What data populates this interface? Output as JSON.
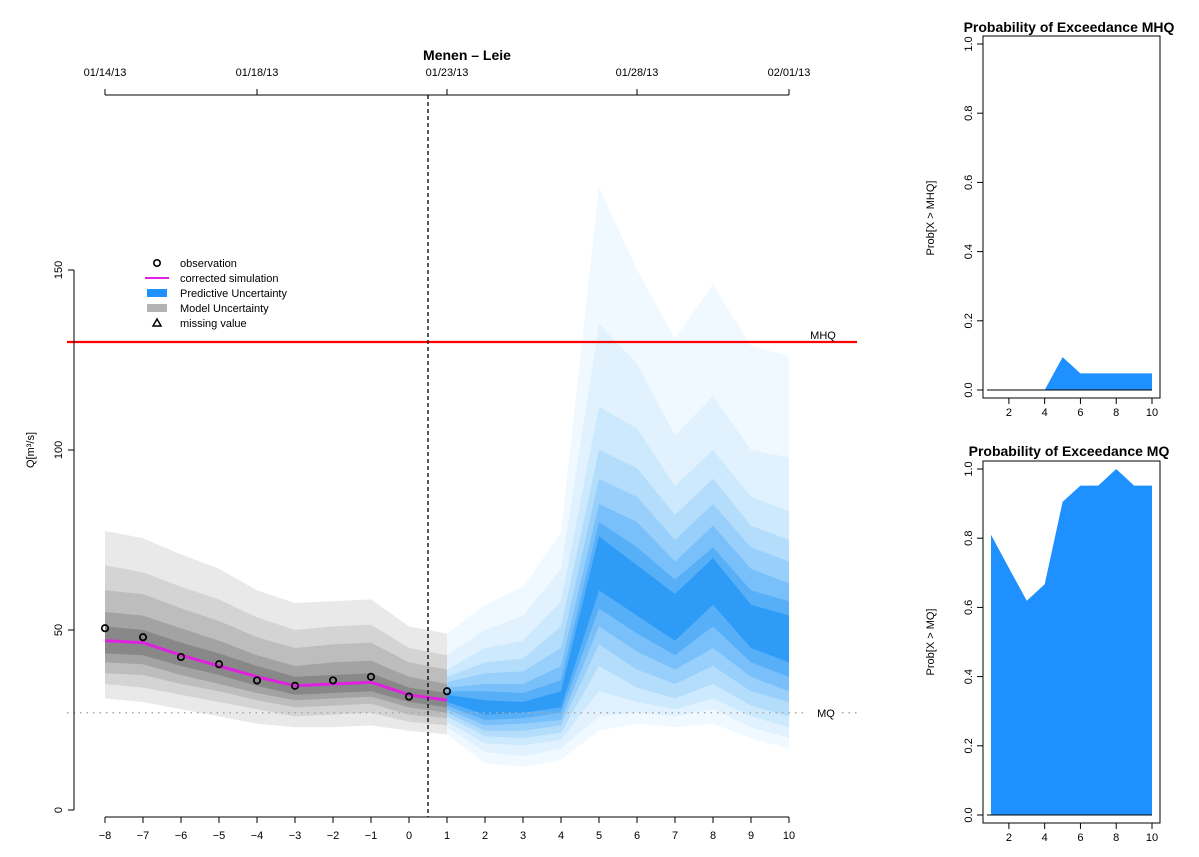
{
  "chart_data": [
    {
      "type": "area",
      "title": "Menen – Leie",
      "ylabel": "Q[m³/s]",
      "xlim": [
        -8,
        10
      ],
      "ylim": [
        0,
        150
      ],
      "x_ticks": [
        -8,
        -7,
        -6,
        -5,
        -4,
        -3,
        -2,
        -1,
        0,
        1,
        2,
        3,
        4,
        5,
        6,
        7,
        8,
        9,
        10
      ],
      "y_ticks": [
        0,
        50,
        100,
        150
      ],
      "top_axis": {
        "tick_positions": [
          -8,
          -4,
          1,
          6,
          10
        ],
        "labels": [
          "01/14/13",
          "01/18/13",
          "01/23/13",
          "01/28/13",
          "02/01/13"
        ]
      },
      "forecast_time": 0.5,
      "legend": {
        "position": "top-left",
        "entries": [
          {
            "label": "observation",
            "symbol": "circle"
          },
          {
            "label": "corrected simulation",
            "color": "#e022e0"
          },
          {
            "label": "Predictive Uncertainty",
            "color": "#1e90ff"
          },
          {
            "label": "Model Uncertainty",
            "color": "#b3b3b3"
          },
          {
            "label": "missing value",
            "symbol": "triangle"
          }
        ]
      },
      "reference_lines": [
        {
          "name": "MHQ",
          "value": 130,
          "color": "#ff0000",
          "style": "solid"
        },
        {
          "name": "MQ",
          "value": 27,
          "color": "#aaaaaa",
          "style": "dotted"
        }
      ],
      "observation": {
        "x": [
          -8,
          -7,
          -6,
          -5,
          -4,
          -3,
          -2,
          -1,
          0,
          1
        ],
        "y": [
          50.5,
          48,
          42.5,
          40.5,
          36,
          34.5,
          36,
          37,
          31.5,
          33
        ]
      },
      "corrected_simulation": {
        "x": [
          -8,
          -7,
          -6,
          -5,
          -4,
          -3,
          -2,
          -1,
          0,
          1
        ],
        "y": [
          47,
          46.5,
          43,
          40,
          37,
          34.5,
          35,
          35.5,
          32,
          30.5
        ]
      },
      "model_uncertainty_bands": {
        "x": [
          -8,
          -7,
          -6,
          -5,
          -4,
          -3,
          -2,
          -1,
          0,
          1
        ],
        "median": [
          47,
          46.5,
          43,
          40,
          37,
          34.5,
          35,
          35.5,
          32,
          30.5
        ],
        "bands": [
          {
            "colour": "#e9e9e9",
            "lower": [
              31,
              30,
              28,
              26,
              24,
              23,
              23,
              23.5,
              22,
              21
            ],
            "upper": [
              77.5,
              75.5,
              71,
              67,
              61,
              57.5,
              58,
              58.5,
              51,
              49
            ]
          },
          {
            "colour": "#d4d4d4",
            "lower": [
              35,
              34,
              32,
              30,
              28,
              26,
              26.5,
              27,
              24.5,
              23.5
            ],
            "upper": [
              68,
              66,
              62,
              58.5,
              53.5,
              50,
              51,
              51.5,
              45,
              43
            ]
          },
          {
            "colour": "#bdbdbd",
            "lower": [
              38,
              37.5,
              35,
              33,
              30.5,
              28.5,
              29,
              29.5,
              26.5,
              25.5
            ],
            "upper": [
              61,
              60,
              56,
              52.5,
              48,
              45,
              46,
              46.5,
              41,
              39
            ]
          },
          {
            "colour": "#a3a3a3",
            "lower": [
              41,
              40.5,
              37.5,
              35,
              32.5,
              30.5,
              31,
              31.5,
              28.5,
              27
            ],
            "upper": [
              55,
              54,
              50.5,
              47,
              43,
              40,
              41,
              41.5,
              37,
              35
            ]
          },
          {
            "colour": "#888888",
            "lower": [
              43.5,
              43,
              40,
              37.5,
              34.5,
              32,
              32.5,
              33,
              30,
              28.5
            ],
            "upper": [
              51,
              50,
              46.5,
              43.5,
              40,
              37,
              37.5,
              38,
              34,
              32.5
            ]
          }
        ]
      },
      "predictive_uncertainty_bands": {
        "x": [
          1,
          2,
          3,
          4,
          5,
          6,
          7,
          8,
          9,
          10
        ],
        "median": [
          31,
          28,
          28,
          30,
          70,
          62,
          55,
          65,
          52,
          48
        ],
        "bands": [
          {
            "colour": "#f0f9ff",
            "lower": [
              21,
              13,
              12,
              14,
              22,
              24,
              23,
              24,
              20,
              17
            ],
            "upper": [
              49,
              57,
              62,
              77,
              173,
              150,
              131,
              146,
              129,
              126
            ]
          },
          {
            "colour": "#e1f2fe",
            "lower": [
              23,
              16,
              15,
              17,
              26,
              27,
              26,
              28,
              23,
              20
            ],
            "upper": [
              43,
              50,
              54,
              67,
              135,
              124,
              104,
              115,
              100,
              98
            ]
          },
          {
            "colour": "#cde9fd",
            "lower": [
              24.5,
              18.5,
              18,
              19.5,
              33,
              30,
              28,
              31,
              26,
              23
            ],
            "upper": [
              39,
              45,
              47,
              58,
              112,
              106,
              90,
              100,
              87,
              83
            ]
          },
          {
            "colour": "#b4ddfc",
            "lower": [
              26,
              20.5,
              20,
              21.5,
              40,
              34,
              31,
              35,
              29,
              26
            ],
            "upper": [
              37,
              41,
              42,
              51,
              100,
              95,
              82,
              92,
              79,
              75
            ]
          },
          {
            "colour": "#98cffb",
            "lower": [
              27,
              22,
              22,
              23.5,
              46,
              39,
              35,
              40,
              33,
              30
            ],
            "upper": [
              35.5,
              38,
              38.5,
              45,
              92,
              87,
              75,
              85,
              73,
              69
            ]
          },
          {
            "colour": "#79c0fa",
            "lower": [
              28,
              23.5,
              24,
              25,
              51,
              44,
              39,
              45,
              37,
              33
            ],
            "upper": [
              34,
              35,
              35,
              40,
              85,
              80,
              69,
              79,
              67,
              63
            ]
          },
          {
            "colour": "#57aff8",
            "lower": [
              29,
              25,
              25.5,
              27,
              56,
              49,
              43,
              51,
              41,
              37
            ],
            "upper": [
              33,
              33,
              32.5,
              36,
              80,
              73,
              64,
              73,
              61,
              58
            ]
          },
          {
            "colour": "#2e9bf6",
            "lower": [
              30,
              26.5,
              27,
              28.5,
              61,
              54,
              47,
              57,
              45,
              41
            ],
            "upper": [
              32,
              30.5,
              30,
              33,
              76,
              68,
              60,
              70,
              57,
              54
            ]
          }
        ]
      }
    },
    {
      "type": "area",
      "title": "Probability of Exceedance MHQ",
      "ylabel": "Prob[X > MHQ]",
      "xlim": [
        1,
        10
      ],
      "ylim": [
        0,
        1
      ],
      "x_ticks": [
        2,
        4,
        6,
        8,
        10
      ],
      "y_ticks": [
        0.0,
        0.2,
        0.4,
        0.6,
        0.8,
        1.0
      ],
      "x": [
        1,
        2,
        3,
        4,
        5,
        6,
        7,
        8,
        9,
        10
      ],
      "values": [
        0,
        0,
        0,
        0,
        0.095,
        0.048,
        0.048,
        0.048,
        0.048,
        0.048
      ],
      "color": "#1e90ff"
    },
    {
      "type": "area",
      "title": "Probability of Exceedance MQ",
      "ylabel": "Prob[X > MQ]",
      "xlim": [
        1,
        10
      ],
      "ylim": [
        0,
        1
      ],
      "x_ticks": [
        2,
        4,
        6,
        8,
        10
      ],
      "y_ticks": [
        0.0,
        0.2,
        0.4,
        0.6,
        0.8,
        1.0
      ],
      "x": [
        1,
        2,
        3,
        4,
        5,
        6,
        7,
        8,
        9,
        10
      ],
      "values": [
        0.81,
        0.714,
        0.619,
        0.667,
        0.905,
        0.952,
        0.952,
        1.0,
        0.952,
        0.952
      ],
      "color": "#1e90ff"
    }
  ]
}
